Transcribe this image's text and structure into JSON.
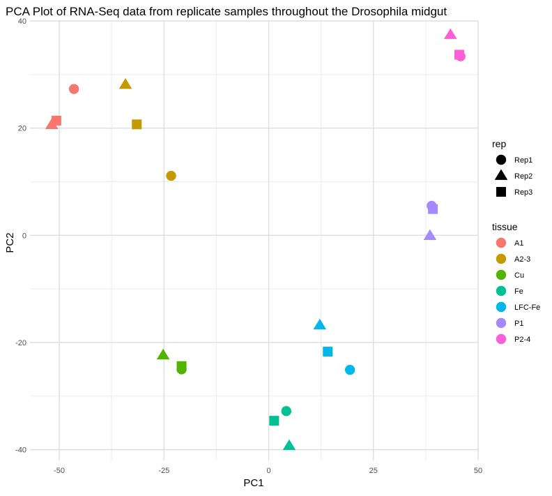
{
  "chart_data": {
    "type": "scatter",
    "title": "PCA Plot of RNA-Seq data from replicate samples throughout the Drosophila midgut",
    "xlabel": "PC1",
    "ylabel": "PC2",
    "xlim": [
      -57,
      50
    ],
    "ylim": [
      -42,
      40
    ],
    "x_ticks": [
      -50,
      -25,
      0,
      25,
      50
    ],
    "x_tick_labels": [
      "-50",
      "-25",
      "0",
      "25",
      "50"
    ],
    "y_ticks": [
      -40,
      -20,
      0,
      20,
      40
    ],
    "y_tick_labels": [
      "-40",
      "-20",
      "0",
      "20",
      "40"
    ],
    "grid": true,
    "legend_position": "right",
    "shape_legend": {
      "title": "rep",
      "items": [
        {
          "label": "Rep1",
          "shape": "circle"
        },
        {
          "label": "Rep2",
          "shape": "triangle"
        },
        {
          "label": "Rep3",
          "shape": "square"
        }
      ]
    },
    "color_legend": {
      "title": "tissue",
      "items": [
        {
          "label": "A1",
          "color": "#F8766D"
        },
        {
          "label": "A2-3",
          "color": "#C49A00"
        },
        {
          "label": "Cu",
          "color": "#53B400"
        },
        {
          "label": "Fe",
          "color": "#00C094"
        },
        {
          "label": "LFC-Fe",
          "color": "#00B6EB"
        },
        {
          "label": "P1",
          "color": "#A58AFF"
        },
        {
          "label": "P2-4",
          "color": "#FB61D7"
        }
      ]
    },
    "points": [
      {
        "tissue": "A1",
        "rep": "Rep1",
        "x": -46.5,
        "y": 27.3
      },
      {
        "tissue": "A1",
        "rep": "Rep2",
        "x": -51.8,
        "y": 20.6
      },
      {
        "tissue": "A1",
        "rep": "Rep3",
        "x": -50.7,
        "y": 21.4
      },
      {
        "tissue": "A2-3",
        "rep": "Rep1",
        "x": -23.3,
        "y": 11.1
      },
      {
        "tissue": "A2-3",
        "rep": "Rep2",
        "x": -34.2,
        "y": 28.1
      },
      {
        "tissue": "A2-3",
        "rep": "Rep3",
        "x": -31.5,
        "y": 20.7
      },
      {
        "tissue": "Cu",
        "rep": "Rep1",
        "x": -20.8,
        "y": -25.0
      },
      {
        "tissue": "Cu",
        "rep": "Rep2",
        "x": -25.2,
        "y": -22.4
      },
      {
        "tissue": "Cu",
        "rep": "Rep3",
        "x": -20.8,
        "y": -24.4
      },
      {
        "tissue": "Fe",
        "rep": "Rep1",
        "x": 4.2,
        "y": -32.8
      },
      {
        "tissue": "Fe",
        "rep": "Rep2",
        "x": 4.9,
        "y": -39.3
      },
      {
        "tissue": "Fe",
        "rep": "Rep3",
        "x": 1.3,
        "y": -34.6
      },
      {
        "tissue": "LFC-Fe",
        "rep": "Rep1",
        "x": 19.4,
        "y": -25.1
      },
      {
        "tissue": "LFC-Fe",
        "rep": "Rep2",
        "x": 12.2,
        "y": -16.8
      },
      {
        "tissue": "LFC-Fe",
        "rep": "Rep3",
        "x": 14.1,
        "y": -21.7
      },
      {
        "tissue": "P1",
        "rep": "Rep1",
        "x": 38.9,
        "y": 5.5
      },
      {
        "tissue": "P1",
        "rep": "Rep2",
        "x": 38.5,
        "y": -0.1
      },
      {
        "tissue": "P1",
        "rep": "Rep3",
        "x": 39.2,
        "y": 4.9
      },
      {
        "tissue": "P2-4",
        "rep": "Rep1",
        "x": 45.8,
        "y": 33.4
      },
      {
        "tissue": "P2-4",
        "rep": "Rep2",
        "x": 43.4,
        "y": 37.4
      },
      {
        "tissue": "P2-4",
        "rep": "Rep3",
        "x": 45.5,
        "y": 33.7
      }
    ]
  }
}
